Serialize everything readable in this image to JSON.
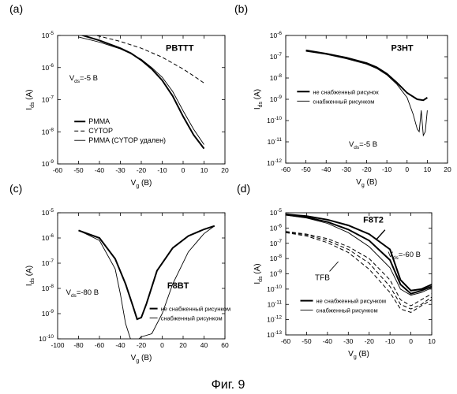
{
  "caption": "Фиг. 9",
  "chart_data": [
    {
      "panel_label": "(a)",
      "type": "line",
      "title": "PBTTT",
      "xlabel": "V",
      "xlabel_sub": "g",
      "xlabel_unit": " (B)",
      "ylabel": "I",
      "ylabel_sub": "ds",
      "ylabel_unit": " (A)",
      "xlim": [
        -60,
        20
      ],
      "xticks": [
        -60,
        -50,
        -40,
        -30,
        -20,
        -10,
        0,
        10,
        20
      ],
      "ylim_exp": [
        -9,
        -5
      ],
      "y_log": true,
      "annotation": "V",
      "annotation_sub": "ds",
      "annotation_rest": "=-5 B",
      "legend": [
        {
          "label": "PMMA",
          "style": "solid-thick"
        },
        {
          "label": "CYTOP",
          "style": "dashed"
        },
        {
          "label": "PMMA (CYTOP удален)",
          "style": "solid-thin"
        }
      ],
      "series": [
        {
          "name": "PMMA",
          "style": "solid-thick",
          "x": [
            -50,
            -40,
            -30,
            -25,
            -20,
            -15,
            -10,
            -5,
            0,
            5,
            10
          ],
          "y": [
            1.1e-05,
            7e-06,
            4e-06,
            2.8e-06,
            1.7e-06,
            9e-07,
            4e-07,
            1.3e-07,
            3e-08,
            8e-09,
            3e-09
          ]
        },
        {
          "name": "CYTOP",
          "style": "dashed",
          "x": [
            -50,
            -40,
            -30,
            -20,
            -10,
            0,
            5,
            10
          ],
          "y": [
            1.3e-05,
            9.5e-06,
            6.5e-06,
            4e-06,
            2.1e-06,
            9e-07,
            5.5e-07,
            3.3e-07
          ]
        },
        {
          "name": "PMMA (CYTOP удален)",
          "style": "solid-thin",
          "x": [
            -50,
            -40,
            -30,
            -25,
            -20,
            -15,
            -10,
            -5,
            0,
            5,
            10
          ],
          "y": [
            9e-06,
            6.2e-06,
            3.8e-06,
            2.7e-06,
            1.8e-06,
            1e-06,
            5e-07,
            1.8e-07,
            4.5e-08,
            1.2e-08,
            4e-09
          ]
        }
      ]
    },
    {
      "panel_label": "(b)",
      "type": "line",
      "title": "P3HT",
      "xlabel": "V",
      "xlabel_sub": "g",
      "xlabel_unit": " (B)",
      "ylabel": "I",
      "ylabel_sub": "ds",
      "ylabel_unit": " (A)",
      "xlim": [
        -60,
        20
      ],
      "xticks": [
        -60,
        -50,
        -40,
        -30,
        -20,
        -10,
        0,
        10,
        20
      ],
      "ylim_exp": [
        -12,
        -6
      ],
      "y_log": true,
      "annotation": "V",
      "annotation_sub": "ds",
      "annotation_rest": "=-5 B",
      "legend": [
        {
          "label": "не снабженный рисунок",
          "style": "solid-thick"
        },
        {
          "label": "снабженный рисунком",
          "style": "solid-thin"
        }
      ],
      "series": [
        {
          "name": "не снабженный рисунок",
          "style": "solid-thick",
          "x": [
            -50,
            -40,
            -30,
            -20,
            -15,
            -10,
            -5,
            0,
            5,
            8,
            10
          ],
          "y": [
            2e-07,
            1.4e-07,
            9e-08,
            5e-08,
            3.2e-08,
            1.6e-08,
            6e-09,
            2e-09,
            1e-09,
            9e-10,
            1.2e-09
          ]
        },
        {
          "name": "снабженный рисунком",
          "style": "solid-thin",
          "x": [
            -50,
            -40,
            -30,
            -20,
            -15,
            -10,
            -5,
            0,
            3,
            5,
            6,
            7,
            8,
            9,
            10
          ],
          "y": [
            1.8e-07,
            1.3e-07,
            8e-08,
            4.5e-08,
            2.8e-08,
            1.4e-08,
            5e-09,
            1.2e-09,
            2e-10,
            4e-11,
            3e-11,
            3e-10,
            2e-11,
            3e-11,
            3e-10
          ]
        }
      ]
    },
    {
      "panel_label": "(c)",
      "type": "line",
      "title": "F8BT",
      "xlabel": "V",
      "xlabel_sub": "g",
      "xlabel_unit": " (B)",
      "ylabel": "I",
      "ylabel_sub": "ds",
      "ylabel_unit": " (A)",
      "xlim": [
        -100,
        60
      ],
      "xticks": [
        -100,
        -80,
        -60,
        -40,
        -20,
        0,
        20,
        40,
        60
      ],
      "ylim_exp": [
        -10,
        -5
      ],
      "y_log": true,
      "annotation": "V",
      "annotation_sub": "ds",
      "annotation_rest": "=-80 B",
      "legend": [
        {
          "label": "не снабженный рисунком",
          "style": "solid-thick"
        },
        {
          "label": "снабженный рисунком",
          "style": "solid-thin"
        }
      ],
      "series": [
        {
          "name": "не снабженный рисунком",
          "style": "solid-thick",
          "x": [
            -80,
            -60,
            -45,
            -35,
            -28,
            -24,
            -20,
            -15,
            -5,
            10,
            25,
            40,
            50
          ],
          "y": [
            2e-06,
            1e-06,
            1.5e-07,
            1.5e-08,
            2e-09,
            6e-10,
            7e-10,
            2.5e-09,
            5e-08,
            4e-07,
            1.2e-06,
            2.2e-06,
            3e-06
          ]
        },
        {
          "name": "снабженный рисунком",
          "style": "solid-thin",
          "x": [
            -80,
            -60,
            -45,
            -40,
            -35,
            -30,
            -25,
            -20,
            -10,
            0,
            10,
            25,
            40,
            50
          ],
          "y": [
            2e-06,
            8e-07,
            6e-08,
            6e-09,
            4e-10,
            9e-11,
            8e-11,
            1.2e-10,
            1.6e-10,
            1e-09,
            1.5e-08,
            2.8e-07,
            1.5e-06,
            3e-06
          ]
        }
      ]
    },
    {
      "panel_label": "(d)",
      "type": "line",
      "title": "F8T2",
      "xlabel": "V",
      "xlabel_sub": "g",
      "xlabel_unit": " (B)",
      "ylabel": "I",
      "ylabel_sub": "ds",
      "ylabel_unit": " (A)",
      "xlim": [
        -60,
        10
      ],
      "xticks": [
        -60,
        -50,
        -40,
        -30,
        -20,
        -10,
        0,
        10
      ],
      "ylim_exp": [
        -13,
        -5
      ],
      "y_log": true,
      "annotation": "V",
      "annotation_sub": "ds",
      "annotation_rest": "=-60 B",
      "extra_label": "TFB",
      "legend": [
        {
          "label": "не снабженный рисунком",
          "style": "solid-thick"
        },
        {
          "label": "снабженный рисунком",
          "style": "solid-thin"
        }
      ],
      "series": [
        {
          "name": "не снабженный рисунком",
          "style": "solid-thick",
          "x": [
            -60,
            -50,
            -40,
            -30,
            -20,
            -10,
            -5,
            0,
            5,
            10
          ],
          "y": [
            8e-06,
            6e-06,
            3.5e-06,
            1.5e-06,
            4e-07,
            4e-08,
            4e-10,
            8e-11,
            1e-10,
            2e-10
          ]
        },
        {
          "name": "не снабженный рисунком",
          "style": "solid-thick",
          "x": [
            -60,
            -50,
            -40,
            -30,
            -20,
            -10,
            -5,
            0,
            5,
            10
          ],
          "y": [
            7.5e-06,
            5e-06,
            2.5e-06,
            8e-07,
            1.5e-07,
            8e-09,
            2e-10,
            5e-11,
            8e-11,
            1.5e-10
          ]
        },
        {
          "name": "снабженный рисунком",
          "style": "solid-thin",
          "x": [
            -60,
            -50,
            -40,
            -30,
            -20,
            -10,
            -5,
            0,
            5,
            10
          ],
          "y": [
            7e-06,
            4.5e-06,
            2e-06,
            5e-07,
            6e-08,
            2.5e-09,
            1e-10,
            4e-11,
            6e-11,
            1.2e-10
          ]
        },
        {
          "name": "TFB",
          "style": "dashed",
          "x": [
            -60,
            -50,
            -40,
            -30,
            -20,
            -10,
            -5,
            0,
            5,
            10
          ],
          "y": [
            6e-07,
            4e-07,
            2e-07,
            6e-08,
            1e-08,
            4e-10,
            2e-11,
            8e-12,
            2e-11,
            5e-11
          ]
        },
        {
          "name": "TFB",
          "style": "dashed",
          "x": [
            -60,
            -50,
            -40,
            -30,
            -20,
            -10,
            -5,
            0,
            5,
            10
          ],
          "y": [
            5.5e-07,
            3.5e-07,
            1.5e-07,
            4e-08,
            5e-09,
            1.5e-10,
            1e-11,
            5e-12,
            1e-11,
            3e-11
          ]
        },
        {
          "name": "TFB",
          "style": "dashed",
          "x": [
            -60,
            -50,
            -40,
            -30,
            -20,
            -10,
            -5,
            0,
            5,
            10
          ],
          "y": [
            5e-07,
            3e-07,
            1.1e-07,
            2.5e-08,
            2e-09,
            6e-11,
            5e-12,
            3e-12,
            8e-12,
            2e-11
          ]
        }
      ]
    }
  ]
}
